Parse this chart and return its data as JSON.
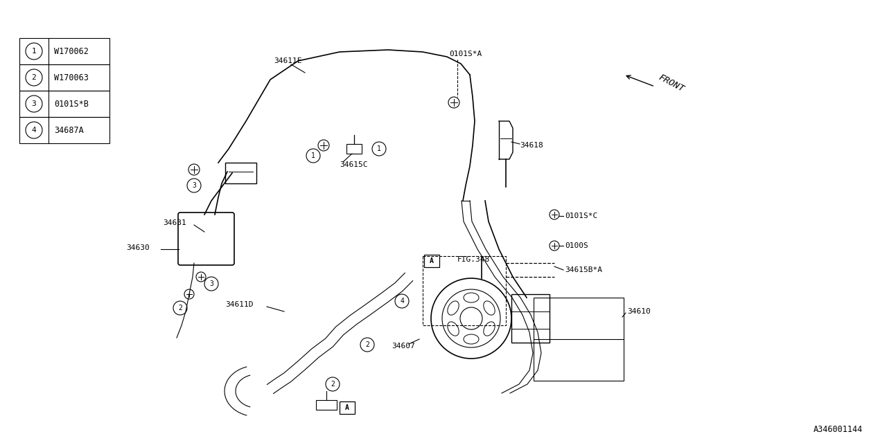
{
  "background_color": "#ffffff",
  "line_color": "#000000",
  "legend_items": [
    {
      "num": "1",
      "code": "W170062"
    },
    {
      "num": "2",
      "code": "W170063"
    },
    {
      "num": "3",
      "code": "0101S*B"
    },
    {
      "num": "4",
      "code": "34687A"
    }
  ],
  "watermark": "A346001144"
}
